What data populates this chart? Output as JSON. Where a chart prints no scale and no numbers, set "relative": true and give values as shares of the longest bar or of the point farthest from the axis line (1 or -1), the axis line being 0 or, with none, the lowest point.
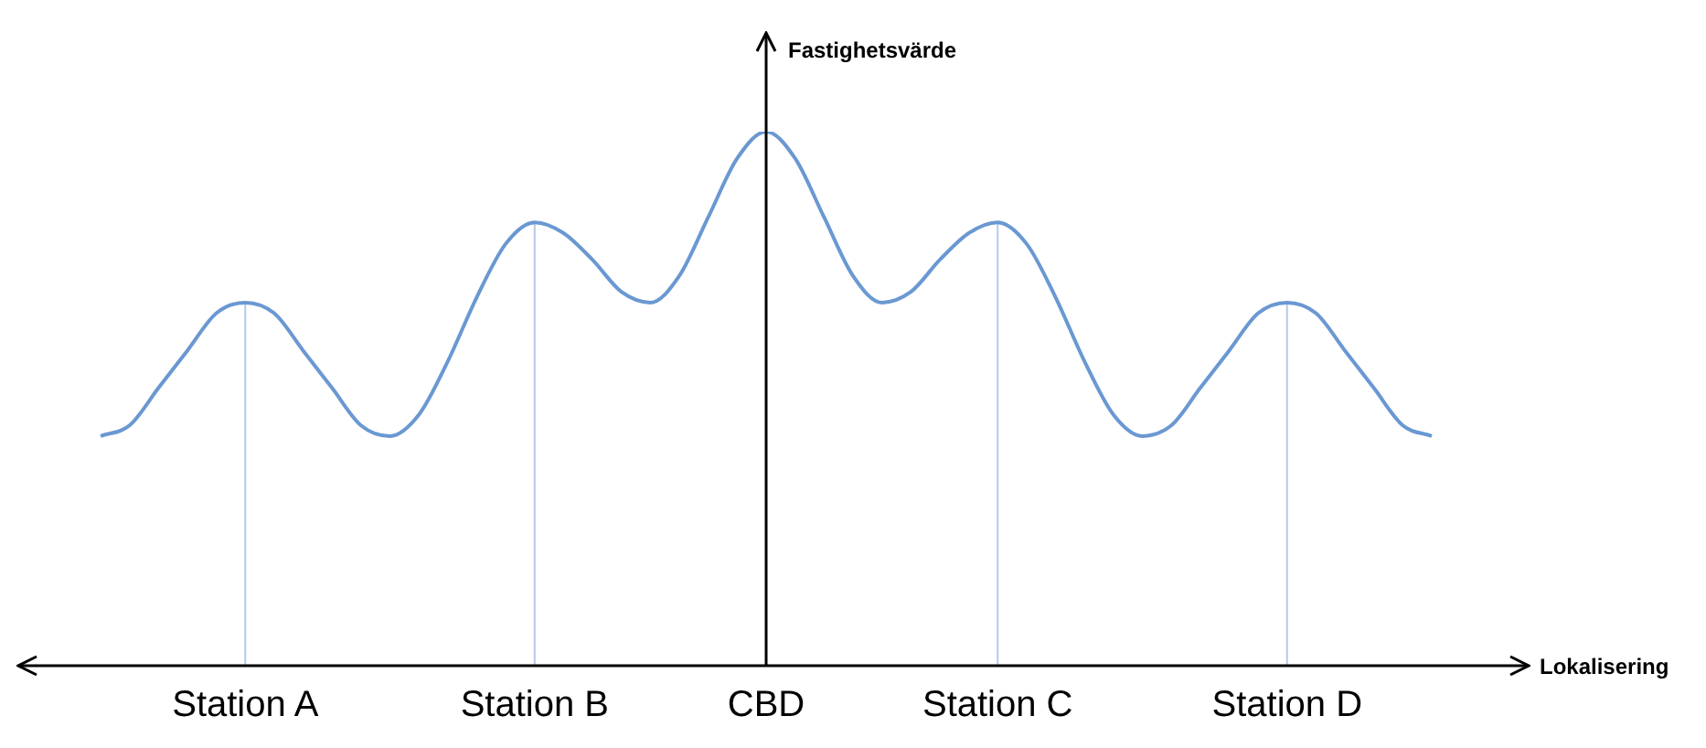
{
  "chart_data": {
    "type": "line",
    "relative": true,
    "xlabel": "Lokalisering",
    "ylabel": "Fastighetsvärde",
    "categories": [
      null,
      null,
      null,
      null,
      null,
      "Station A",
      null,
      null,
      null,
      null,
      null,
      null,
      null,
      null,
      null,
      "Station B",
      null,
      null,
      null,
      null,
      null,
      null,
      null,
      "CBD",
      null,
      null,
      null,
      null,
      null,
      null,
      null,
      "Station C",
      null,
      null,
      null,
      null,
      null,
      null,
      null,
      null,
      null,
      "Station D",
      null,
      null,
      null,
      null,
      null
    ],
    "series": [
      {
        "color": "#6a98d2",
        "values": [
          0.43,
          0.45,
          0.52,
          0.59,
          0.66,
          0.68,
          0.66,
          0.59,
          0.52,
          0.45,
          0.43,
          0.47,
          0.57,
          0.69,
          0.79,
          0.83,
          0.81,
          0.76,
          0.7,
          0.68,
          0.73,
          0.84,
          0.95,
          1.0,
          0.95,
          0.84,
          0.73,
          0.68,
          0.7,
          0.76,
          0.81,
          0.83,
          0.79,
          0.69,
          0.57,
          0.47,
          0.43,
          0.45,
          0.52,
          0.59,
          0.66,
          0.68,
          0.66,
          0.59,
          0.52,
          0.45,
          0.43
        ]
      }
    ],
    "ref_lines": [
      {
        "axis": "x",
        "value": "Station A",
        "color": "#b4cbe8"
      },
      {
        "axis": "x",
        "value": "Station B",
        "color": "#b4cbe8"
      },
      {
        "axis": "x",
        "value": "Station C",
        "color": "#b4cbe8"
      },
      {
        "axis": "x",
        "value": "Station D",
        "color": "#b4cbe8"
      }
    ],
    "grid": false,
    "legend": false,
    "marker": "none"
  }
}
